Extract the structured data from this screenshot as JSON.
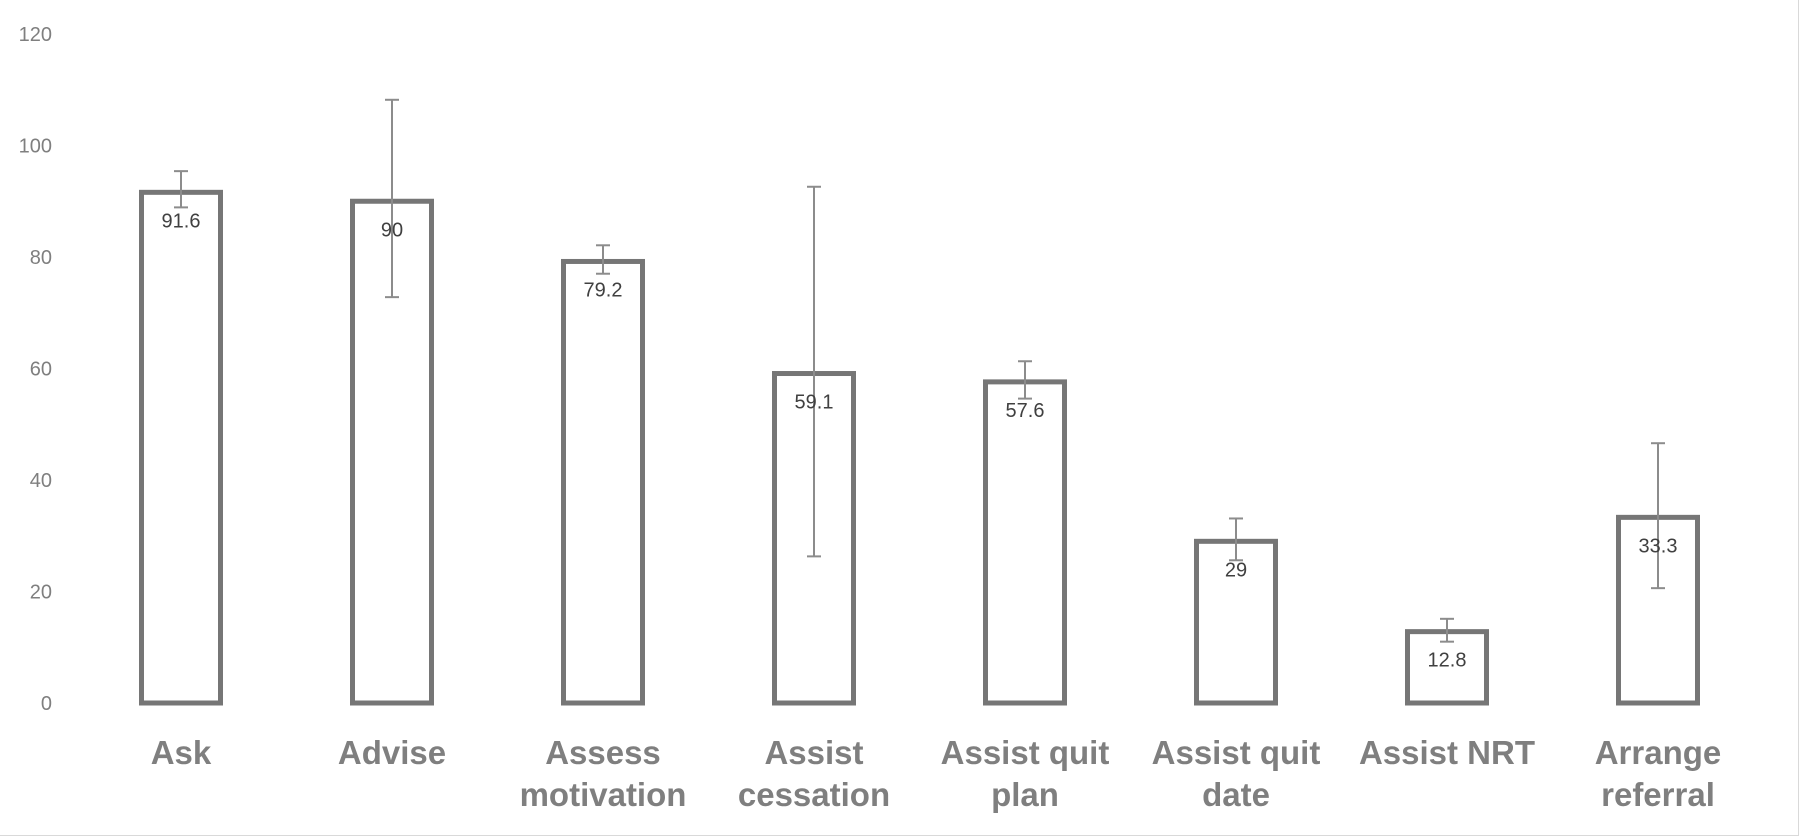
{
  "chart_data": {
    "type": "bar",
    "categories": [
      [
        "Ask"
      ],
      [
        "Advise"
      ],
      [
        "Assess",
        "motivation"
      ],
      [
        "Assist",
        "cessation"
      ],
      [
        "Assist quit",
        "plan"
      ],
      [
        "Assist quit",
        "date"
      ],
      [
        "Assist NRT"
      ],
      [
        "Arrange",
        "referral"
      ]
    ],
    "values": [
      91.6,
      90,
      79.2,
      59.1,
      57.6,
      29,
      12.8,
      33.3
    ],
    "data_labels": [
      "91.6",
      "90",
      "79.2",
      "59.1",
      "57.6",
      "29",
      "12.8",
      "33.3"
    ],
    "error_bars": [
      {
        "low": 88.9,
        "high": 95.4
      },
      {
        "low": 72.8,
        "high": 108.2
      },
      {
        "low": 77.0,
        "high": 82.1
      },
      {
        "low": 26.3,
        "high": 92.6
      },
      {
        "low": 54.6,
        "high": 61.3
      },
      {
        "low": 25.6,
        "high": 33.1
      },
      {
        "low": 11.0,
        "high": 15.1
      },
      {
        "low": 20.6,
        "high": 46.6
      }
    ],
    "y_ticks": [
      "0",
      "20",
      "40",
      "60",
      "80",
      "100",
      "120"
    ],
    "ylim": [
      0,
      120
    ],
    "grid": false,
    "legend": "none",
    "title": "",
    "xlabel": "",
    "ylabel": "",
    "colors": {
      "bar_outline": "#767676",
      "bar_fill": "#ffffff",
      "error_bar": "#8c8c8c",
      "axis_text": "#7f7f7f",
      "label_text": "#404040"
    }
  }
}
